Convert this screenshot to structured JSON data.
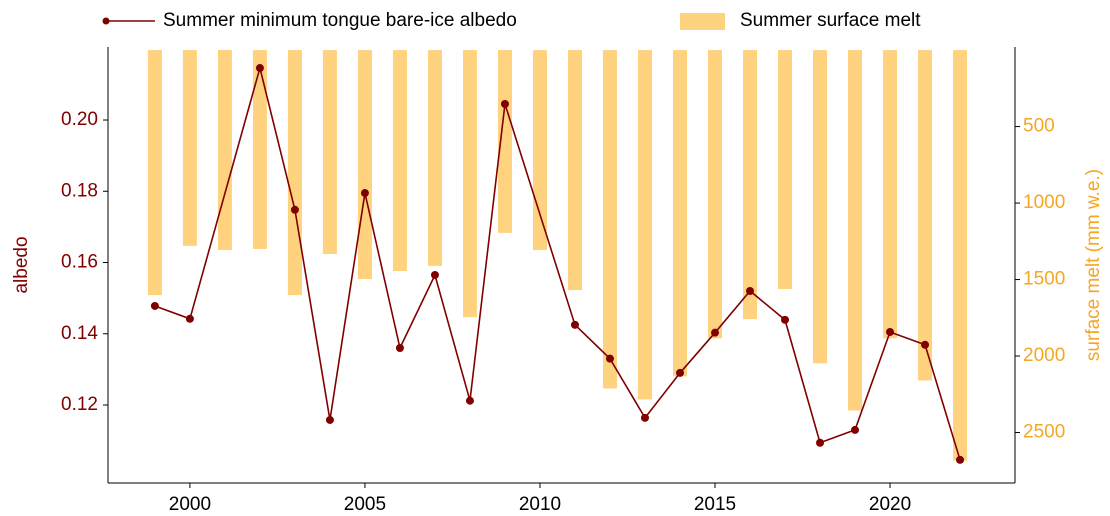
{
  "chart_data": {
    "type": "combo",
    "xlim": [
      1997.66,
      2023.57
    ],
    "xticks": [
      2000,
      2005,
      2010,
      2015,
      2020
    ],
    "ylim": [
      0.0981,
      0.2205
    ],
    "yticks": [
      0.12,
      0.14,
      0.16,
      {
        "value": 0.2,
        "label": "0.20"
      },
      0.18
    ],
    "y2lim": [
      -20,
      2830
    ],
    "y2_inverted": true,
    "y2ticks": [
      500,
      1000,
      1500,
      2000,
      2500
    ],
    "ylabel": "albedo",
    "y2label": "surface melt (mm w.e.)",
    "ylabel_color": "#800000",
    "y2label_color": "#f5a623",
    "series": [
      {
        "name": "Summer minimum tongue bare-ice albedo",
        "type": "line",
        "color": "#800000",
        "x": [
          1999,
          2000,
          2002,
          2003,
          2004,
          2005,
          2006,
          2007,
          2008,
          2009,
          2011,
          2012,
          2013,
          2014,
          2015,
          2016,
          2017,
          2018,
          2019,
          2020,
          2021,
          2022
        ],
        "values": [
          0.1478,
          0.1442,
          0.2146,
          0.1748,
          0.1158,
          0.1795,
          0.136,
          0.1565,
          0.1212,
          0.2045,
          0.1425,
          0.133,
          0.1164,
          0.129,
          0.1403,
          0.152,
          0.1439,
          0.1094,
          0.113,
          0.1405,
          0.1369,
          0.1046
        ]
      },
      {
        "name": "Summer surface melt",
        "type": "bar",
        "axis": "y2",
        "color": "#ffd280",
        "x": [
          1999,
          2000,
          2001,
          2002,
          2003,
          2004,
          2005,
          2006,
          2007,
          2008,
          2009,
          2010,
          2011,
          2012,
          2013,
          2014,
          2015,
          2016,
          2017,
          2018,
          2019,
          2020,
          2021,
          2022
        ],
        "values": [
          1602,
          1280,
          1307,
          1300,
          1602,
          1333,
          1497,
          1444,
          1411,
          1746,
          1195,
          1307,
          1569,
          2212,
          2284,
          2133,
          1884,
          1759,
          1562,
          2048,
          2356,
          1884,
          2160,
          2684
        ]
      }
    ]
  }
}
